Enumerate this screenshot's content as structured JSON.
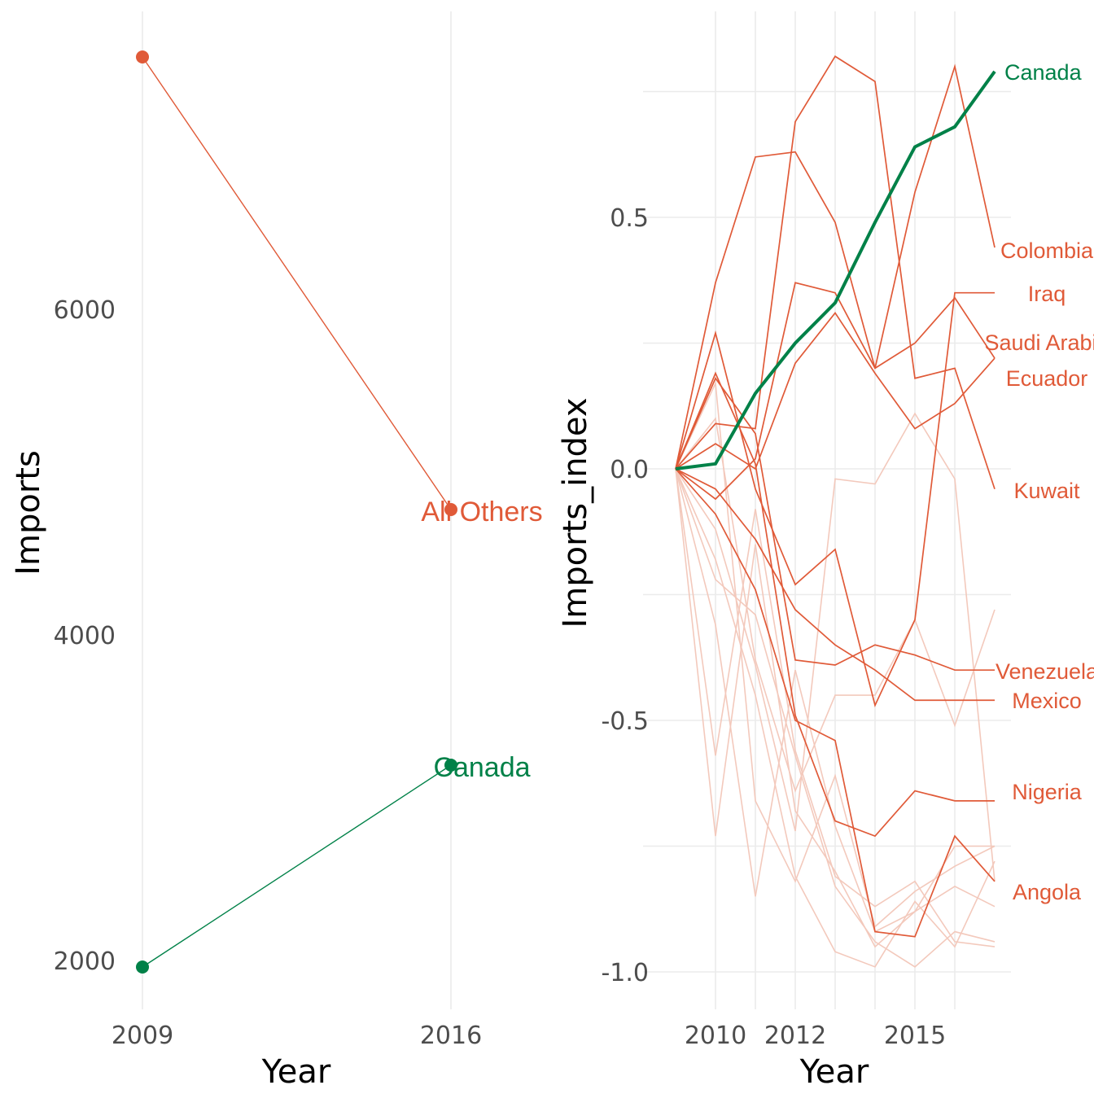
{
  "colors": {
    "highlight": "#008148",
    "others": "#E05A38",
    "faded": "#F3C9BC",
    "grid": "#EBEBEB",
    "tick_text": "#4D4D4D"
  },
  "chart_data": [
    {
      "type": "line",
      "title": "",
      "xlabel": "Year",
      "ylabel": "Imports",
      "x": [
        2009,
        2016
      ],
      "xticks": [
        "2009",
        "2016"
      ],
      "yticks": [
        2000,
        4000,
        6000
      ],
      "ylim": [
        1770,
        8030
      ],
      "grid": "vertical only",
      "series": [
        {
          "name": "All Others",
          "values": [
            7550,
            4770
          ],
          "color": "#E05A38"
        },
        {
          "name": "Canada",
          "values": [
            1960,
            3200
          ],
          "color": "#008148"
        }
      ]
    },
    {
      "type": "line",
      "title": "",
      "xlabel": "Year",
      "ylabel": "Imports_index",
      "x": [
        2009,
        2010,
        2011,
        2012,
        2013,
        2014,
        2015,
        2016,
        2017
      ],
      "xticks": [
        2010,
        2012,
        2015
      ],
      "yticks": [
        -1.0,
        -0.5,
        0.0,
        0.5
      ],
      "ytick_labels": [
        "-1.0",
        "-0.5",
        "0.0",
        "0.5"
      ],
      "ylim": [
        -1.07,
        0.91
      ],
      "grid": "on",
      "highlight": {
        "name": "Canada",
        "values": [
          0,
          0.01,
          0.15,
          0.25,
          0.33,
          0.49,
          0.64,
          0.68,
          0.79
        ],
        "color": "#008148"
      },
      "labeled_series": [
        {
          "name": "Colombia",
          "values": [
            0,
            0.37,
            0.62,
            0.63,
            0.49,
            0.2,
            0.55,
            0.8,
            0.44
          ]
        },
        {
          "name": "Iraq",
          "values": [
            0,
            0.09,
            0.08,
            0.69,
            0.82,
            0.77,
            0.18,
            0.2,
            -0.04
          ]
        },
        {
          "name": "Saudi Arabia",
          "values": [
            0,
            -0.06,
            0.02,
            0.37,
            0.35,
            0.2,
            0.25,
            0.34,
            0.22
          ]
        },
        {
          "name": "Ecuador",
          "values": [
            0,
            0.05,
            0.0,
            0.21,
            0.31,
            0.19,
            0.08,
            0.13,
            0.22
          ]
        },
        {
          "name": "Kuwait",
          "values": [
            0,
            0.27,
            -0.04,
            -0.23,
            -0.16,
            -0.47,
            -0.3,
            0.35,
            0.35
          ]
        },
        {
          "name": "Venezuela",
          "values": [
            0,
            0.18,
            0.07,
            -0.38,
            -0.39,
            -0.35,
            -0.37,
            -0.4,
            -0.4
          ]
        },
        {
          "name": "Mexico",
          "values": [
            0,
            -0.04,
            -0.14,
            -0.28,
            -0.35,
            -0.4,
            -0.46,
            -0.46,
            -0.46
          ]
        },
        {
          "name": "Nigeria",
          "values": [
            0,
            0.19,
            0.01,
            -0.49,
            -0.7,
            -0.73,
            -0.64,
            -0.66,
            -0.66
          ]
        },
        {
          "name": "Angola",
          "values": [
            0,
            -0.09,
            -0.24,
            -0.5,
            -0.54,
            -0.92,
            -0.93,
            -0.73,
            -0.82
          ]
        }
      ],
      "faded_series": [
        [
          0,
          -0.57,
          -0.08,
          -0.56,
          -0.81,
          -0.87,
          -0.82,
          -0.94,
          -0.95
        ],
        [
          0,
          -0.73,
          -0.15,
          -0.68,
          -0.8,
          -0.95,
          -0.88,
          -0.83,
          -0.87
        ],
        [
          0,
          0.17,
          -0.66,
          -0.82,
          -0.61,
          -0.91,
          -0.84,
          -0.79,
          -0.75
        ],
        [
          0,
          -0.31,
          -0.85,
          -0.4,
          -0.71,
          -0.92,
          -0.88,
          -0.75,
          -0.75
        ],
        [
          0,
          0.1,
          -0.38,
          -0.64,
          -0.45,
          -0.45,
          -0.3,
          -0.51,
          -0.28
        ],
        [
          0,
          -0.12,
          -0.39,
          -0.72,
          -0.02,
          -0.03,
          0.11,
          -0.02,
          -0.82
        ],
        [
          0,
          -0.18,
          -0.45,
          -0.81,
          -0.96,
          -0.99,
          -0.86,
          -0.95,
          -0.78
        ],
        [
          0,
          -0.22,
          -0.29,
          -0.57,
          -0.83,
          -0.94,
          -0.99,
          -0.92,
          -0.94
        ]
      ]
    }
  ]
}
